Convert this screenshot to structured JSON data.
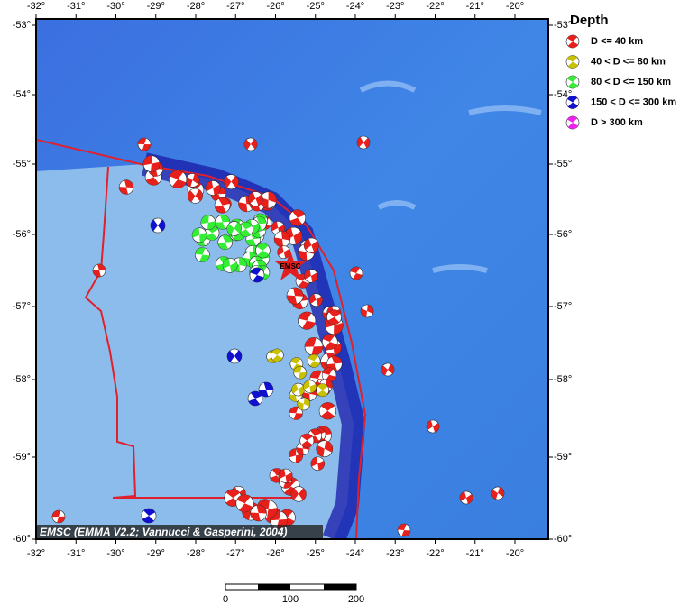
{
  "map": {
    "lon_labels": [
      "-32°",
      "-31°",
      "-30°",
      "-29°",
      "-28°",
      "-27°",
      "-26°",
      "-25°",
      "-24°",
      "-23°",
      "-22°",
      "-21°",
      "-20°"
    ],
    "lat_labels": [
      "-53°",
      "-54°",
      "-55°",
      "-56°",
      "-57°",
      "-58°",
      "-59°",
      "-60°"
    ],
    "legend": {
      "title": "Depth",
      "items": [
        "D <= 40 km",
        "40 < D <= 80 km",
        "80 < D <= 150 km",
        "150 < D <= 300 km",
        "D > 300 km"
      ]
    },
    "marker_label": "EMSC",
    "credit": "EMSC (EMMA V2.2; Vannucci & Gasperini, 2004)",
    "scale_bar": {
      "labels": [
        "0",
        "100",
        "200"
      ]
    }
  }
}
